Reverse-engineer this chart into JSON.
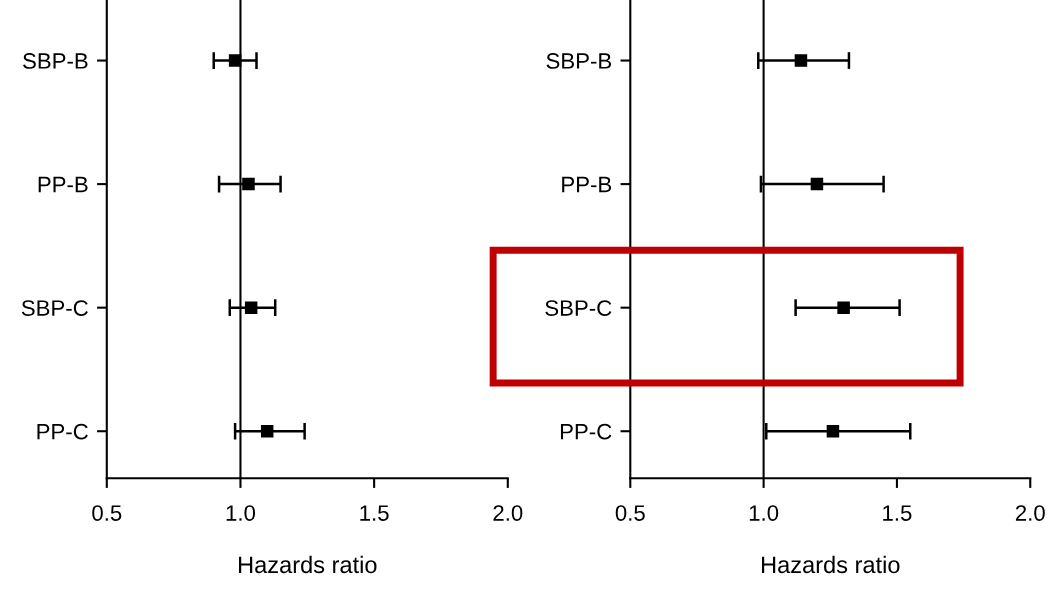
{
  "chart_data": [
    {
      "type": "scatter",
      "orientation": "horizontal",
      "categories": [
        "SBP-B",
        "PP-B",
        "SBP-C",
        "PP-C"
      ],
      "xlabel": "Hazards ratio",
      "marker": "square",
      "color": "#000000",
      "values": [
        0.98,
        1.03,
        1.04,
        1.1
      ],
      "errors": [
        [
          0.9,
          1.06
        ],
        [
          0.92,
          1.15
        ],
        [
          0.96,
          1.13
        ],
        [
          0.98,
          1.24
        ]
      ],
      "xlim": [
        0.5,
        2.0
      ],
      "xticks": [
        {
          "value": 0.5,
          "label": "0.5"
        },
        {
          "value": 1.0,
          "label": "1.0"
        },
        {
          "value": 1.5,
          "label": "1.5"
        },
        {
          "value": 2.0,
          "label": "2.0"
        }
      ],
      "ref_lines": [
        {
          "axis": "x",
          "value": 1.0,
          "color": "#000000"
        }
      ],
      "grid": false,
      "legend": false
    },
    {
      "type": "scatter",
      "orientation": "horizontal",
      "categories": [
        "SBP-B",
        "PP-B",
        "SBP-C",
        "PP-C"
      ],
      "xlabel": "Hazards ratio",
      "marker": "square",
      "color": "#000000",
      "values": [
        1.14,
        1.2,
        1.3,
        1.26
      ],
      "errors": [
        [
          0.98,
          1.32
        ],
        [
          0.99,
          1.45
        ],
        [
          1.12,
          1.51
        ],
        [
          1.01,
          1.55
        ]
      ],
      "xlim": [
        0.5,
        2.0
      ],
      "xticks": [
        {
          "value": 0.5,
          "label": "0.5"
        },
        {
          "value": 1.0,
          "label": "1.0"
        },
        {
          "value": 1.5,
          "label": "1.5"
        },
        {
          "value": 2.0,
          "label": "2.0"
        }
      ],
      "ref_lines": [
        {
          "axis": "x",
          "value": 1.0,
          "color": "#000000"
        }
      ],
      "grid": false,
      "legend": false
    }
  ]
}
